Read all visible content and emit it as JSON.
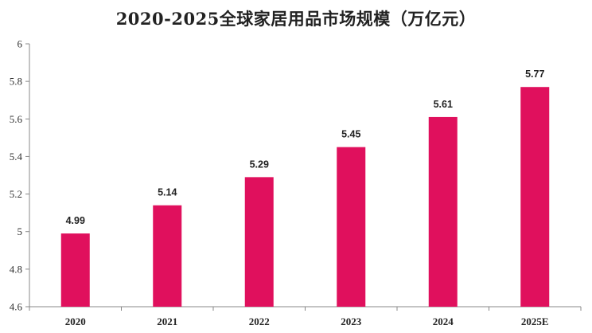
{
  "chart_data": {
    "type": "bar",
    "title": "2020-2025全球家居用品市场规模（万亿元）",
    "categories": [
      "2020",
      "2021",
      "2022",
      "2023",
      "2024",
      "2025E"
    ],
    "series": [
      {
        "values": [
          4.99,
          5.14,
          5.29,
          5.45,
          5.61,
          5.77
        ]
      }
    ],
    "data_labels": [
      "4.99",
      "5.14",
      "5.29",
      "5.45",
      "5.61",
      "5.77"
    ],
    "y_ticks": [
      "4.6",
      "4.8",
      "5",
      "5.2",
      "5.4",
      "5.6",
      "5.8",
      "6"
    ],
    "ylim": [
      4.6,
      6
    ],
    "xlabel": "",
    "ylabel": "",
    "grid": false,
    "legend": "none",
    "bar_color": "#E0105D",
    "axis_color": "#888888"
  }
}
